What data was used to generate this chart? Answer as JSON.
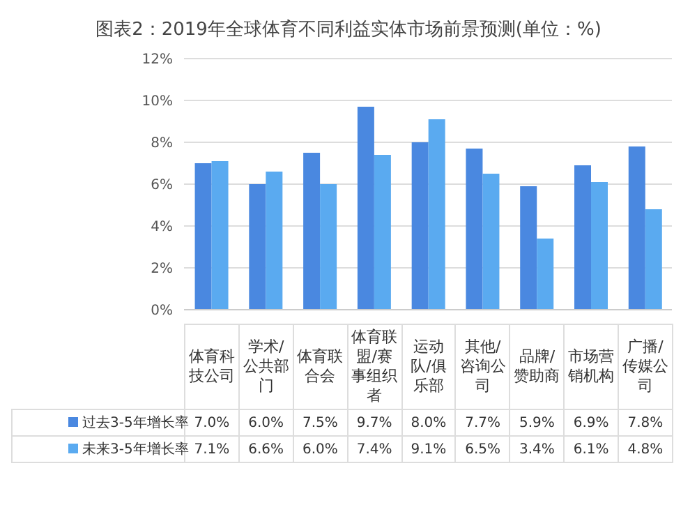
{
  "chart_data": {
    "type": "bar",
    "title": "图表2：2019年全球体育不同利益实体市场前景预测(单位：%)",
    "categories": [
      "体育科技公司",
      "学术/公共部门",
      "体育联合会",
      "体育联盟/赛事组织者",
      "运动队/俱乐部",
      "其他/咨询公司",
      "品牌/赞助商",
      "市场营销机构",
      "广播/传媒公司"
    ],
    "series": [
      {
        "name": "过去3-5年增长率",
        "color": "#4a88e0",
        "values": [
          7.0,
          6.0,
          7.5,
          9.7,
          8.0,
          7.7,
          5.9,
          6.9,
          7.8
        ],
        "value_labels": [
          "7.0%",
          "6.0%",
          "7.5%",
          "9.7%",
          "8.0%",
          "7.7%",
          "5.9%",
          "6.9%",
          "7.8%"
        ]
      },
      {
        "name": "未来3-5年增长率",
        "color": "#5aaaf0",
        "values": [
          7.1,
          6.6,
          6.0,
          7.4,
          9.1,
          6.5,
          3.4,
          6.1,
          4.8
        ],
        "value_labels": [
          "7.1%",
          "6.6%",
          "6.0%",
          "7.4%",
          "9.1%",
          "6.5%",
          "3.4%",
          "6.1%",
          "4.8%"
        ]
      }
    ],
    "ylim": [
      0,
      12
    ],
    "yticks": [
      {
        "value": 0,
        "label": "0%"
      },
      {
        "value": 2,
        "label": "2%"
      },
      {
        "value": 4,
        "label": "4%"
      },
      {
        "value": 6,
        "label": "6%"
      },
      {
        "value": 8,
        "label": "8%"
      },
      {
        "value": 10,
        "label": "10%"
      },
      {
        "value": 12,
        "label": "12%"
      }
    ],
    "grid": "y",
    "legend": "bottom"
  }
}
